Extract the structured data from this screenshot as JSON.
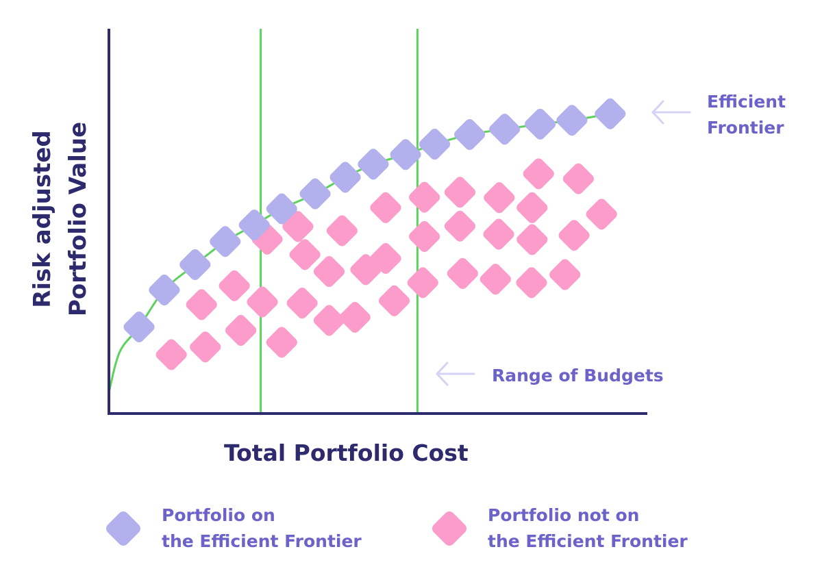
{
  "chart_data": {
    "type": "scatter",
    "title": "",
    "xlabel": "Total Portfolio Cost",
    "ylabel": "Risk adjusted Portfolio Value",
    "xlim": [
      0,
      100
    ],
    "ylim": [
      0,
      100
    ],
    "grid": false,
    "legend_position": "bottom",
    "axis_ticks": "none",
    "series": [
      {
        "name": "Portfolio on the Efficient Frontier",
        "color": "#b3b0ee",
        "points": [
          [
            5.6,
            22.5
          ],
          [
            10.3,
            32.1
          ],
          [
            16.0,
            38.7
          ],
          [
            21.6,
            44.7
          ],
          [
            27.0,
            49.0
          ],
          [
            32.1,
            53.2
          ],
          [
            38.3,
            57.1
          ],
          [
            43.9,
            61.4
          ],
          [
            49.1,
            64.8
          ],
          [
            55.1,
            67.3
          ],
          [
            60.5,
            70.0
          ],
          [
            67.0,
            72.5
          ],
          [
            73.5,
            73.9
          ],
          [
            80.1,
            75.2
          ],
          [
            86.0,
            76.2
          ],
          [
            93.1,
            77.9
          ]
        ]
      },
      {
        "name": "Portfolio not on the Efficient Frontier",
        "color": "#fb9ccb",
        "points": [
          [
            11.6,
            15.3
          ],
          [
            17.9,
            17.3
          ],
          [
            24.5,
            21.6
          ],
          [
            32.1,
            18.5
          ],
          [
            17.2,
            28.3
          ],
          [
            23.3,
            33.2
          ],
          [
            28.5,
            29.0
          ],
          [
            35.9,
            28.7
          ],
          [
            40.9,
            24.2
          ],
          [
            45.7,
            25.0
          ],
          [
            53.0,
            29.3
          ],
          [
            58.3,
            34.0
          ],
          [
            65.7,
            36.4
          ],
          [
            71.8,
            34.9
          ],
          [
            78.5,
            34.0
          ],
          [
            84.7,
            36.1
          ],
          [
            36.4,
            41.3
          ],
          [
            40.9,
            36.9
          ],
          [
            47.7,
            37.4
          ],
          [
            51.4,
            40.3
          ],
          [
            29.4,
            45.3
          ],
          [
            35.1,
            48.6
          ],
          [
            43.3,
            47.5
          ],
          [
            58.6,
            46.0
          ],
          [
            65.2,
            48.7
          ],
          [
            72.4,
            46.6
          ],
          [
            78.6,
            45.2
          ],
          [
            86.4,
            46.3
          ],
          [
            51.4,
            53.5
          ],
          [
            58.6,
            56.2
          ],
          [
            65.2,
            57.5
          ],
          [
            72.5,
            56.1
          ],
          [
            78.6,
            53.5
          ],
          [
            91.5,
            51.8
          ],
          [
            79.8,
            62.3
          ],
          [
            87.2,
            61.0
          ]
        ]
      }
    ],
    "frontier_curve": {
      "color": "#5cd25c",
      "points": [
        [
          0,
          5.5
        ],
        [
          2.0,
          16.0
        ],
        [
          5.6,
          22.5
        ],
        [
          10.3,
          32.1
        ],
        [
          16.0,
          38.7
        ],
        [
          21.6,
          44.7
        ],
        [
          27.0,
          49.0
        ],
        [
          32.1,
          53.2
        ],
        [
          38.3,
          57.1
        ],
        [
          43.9,
          61.4
        ],
        [
          49.1,
          64.8
        ],
        [
          55.1,
          67.3
        ],
        [
          60.5,
          70.0
        ],
        [
          67.0,
          72.5
        ],
        [
          73.5,
          73.9
        ],
        [
          80.1,
          75.2
        ],
        [
          86.0,
          76.2
        ],
        [
          93.1,
          77.9
        ]
      ]
    },
    "budget_lines": {
      "color": "#5cd25c",
      "x": [
        28.2,
        57.3
      ]
    },
    "annotations": {
      "frontier": {
        "line1": "Efficient",
        "line2": "Frontier"
      },
      "budgets": {
        "text": "Range of Budgets"
      }
    },
    "legend": [
      {
        "line1": "Portfolio on",
        "line2": "the Efficient Frontier",
        "color": "#b3b0ee"
      },
      {
        "line1": "Portfolio not on",
        "line2": "the Efficient Frontier",
        "color": "#fb9ccb"
      }
    ],
    "colors": {
      "axis": "#2d2a6e",
      "accent_text": "#6b63c9",
      "arrow": "#d5d3f5"
    }
  }
}
